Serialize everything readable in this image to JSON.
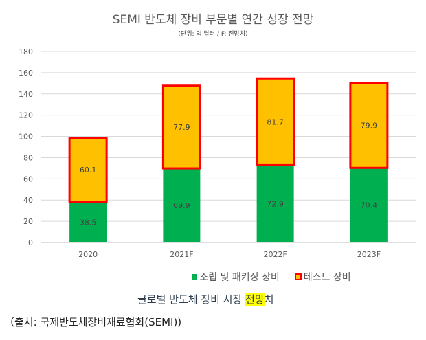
{
  "chart_data": {
    "type": "bar",
    "stacked": true,
    "title": "SEMI 반도체 장비 부문별 연간 성장 전망",
    "subtitle": "(단위: 억 달러 / F: 전망치)",
    "categories": [
      "2020",
      "2021F",
      "2022F",
      "2023F"
    ],
    "series": [
      {
        "name": "조립 및 패키징 장비",
        "values": [
          38.5,
          69.9,
          72.9,
          70.4
        ],
        "color": "#00b050"
      },
      {
        "name": "테스트 장비",
        "values": [
          60.1,
          77.9,
          81.7,
          79.9
        ],
        "color": "#ffc000",
        "border": "#ff0000"
      }
    ],
    "ylim": [
      0,
      180
    ],
    "yticks": [
      "0",
      "20",
      "40",
      "60",
      "80",
      "100",
      "120",
      "140",
      "160",
      "180"
    ],
    "grid": true,
    "legend": "bottom"
  },
  "caption": {
    "before": "글로벌 반도체 장비 시장 ",
    "highlight": "전망",
    "after": "치"
  },
  "source": "（출처: 국제반도체장비재료협회(SEMI))"
}
